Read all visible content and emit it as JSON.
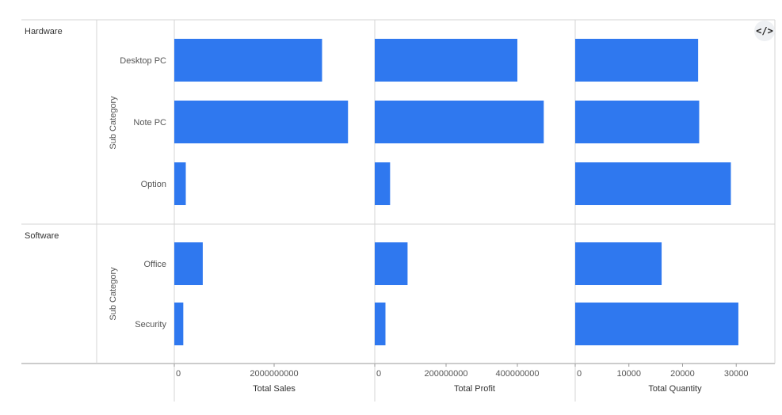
{
  "icons": {
    "code_toggle": "code-icon"
  },
  "colors": {
    "bar": "#2f78ef",
    "grid": "#d4d4d4",
    "text": "#555555"
  },
  "chart_data": {
    "type": "bar",
    "orientation": "horizontal",
    "row_dimension_label": "Sub Category",
    "groups": [
      {
        "name": "Hardware",
        "categories": [
          "Desktop PC",
          "Note PC",
          "Option"
        ]
      },
      {
        "name": "Software",
        "categories": [
          "Office",
          "Security"
        ]
      }
    ],
    "measures": [
      {
        "name": "Total Sales",
        "ticks": [
          0,
          2000000000
        ],
        "tick_labels": [
          "0",
          "2000000000"
        ],
        "range": [
          0,
          4000000000
        ],
        "values": [
          2960000000,
          3480000000,
          230000000,
          570000000,
          180000000
        ]
      },
      {
        "name": "Total Profit",
        "ticks": [
          0,
          200000000,
          400000000
        ],
        "tick_labels": [
          "0",
          "200000000",
          "400000000"
        ],
        "range": [
          0,
          560000000
        ],
        "values": [
          400000000,
          474000000,
          43000000,
          92000000,
          30000000
        ]
      },
      {
        "name": "Total Quantity",
        "ticks": [
          0,
          10000,
          20000,
          30000
        ],
        "tick_labels": [
          "0",
          "10000",
          "20000",
          "30000"
        ],
        "range": [
          0,
          37200
        ],
        "values": [
          22900,
          23100,
          29000,
          16100,
          30400
        ]
      }
    ],
    "grid": true,
    "legend": "none"
  }
}
